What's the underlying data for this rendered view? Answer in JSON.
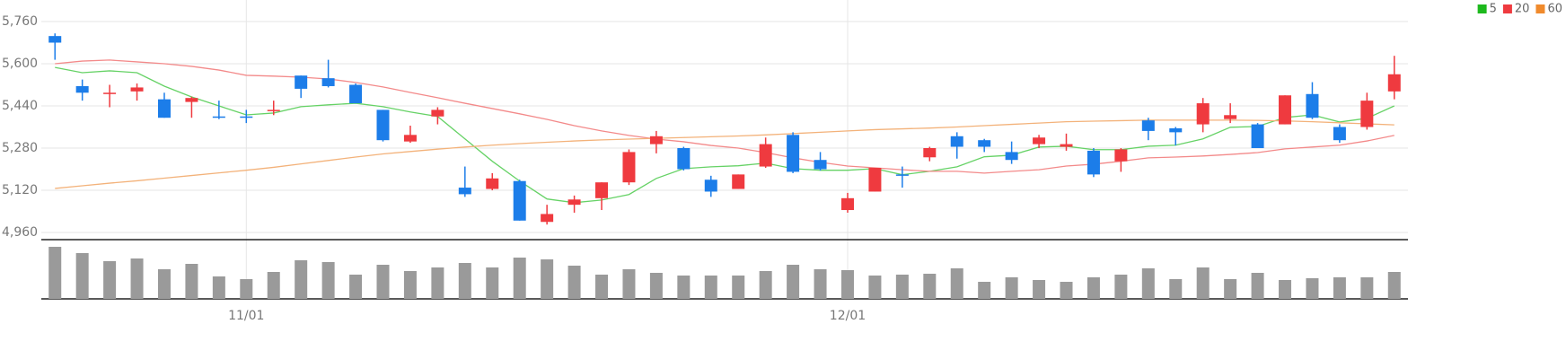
{
  "chart_data": {
    "type": "candlestick",
    "categories": [
      null,
      null,
      null,
      null,
      null,
      null,
      null,
      "11/01",
      null,
      null,
      null,
      null,
      null,
      null,
      null,
      null,
      null,
      null,
      null,
      null,
      null,
      null,
      null,
      null,
      null,
      null,
      null,
      null,
      null,
      "12/01",
      null,
      null,
      null,
      null,
      null,
      null,
      null,
      null,
      null,
      null,
      null,
      null,
      null,
      null,
      null,
      null,
      null,
      null,
      null,
      null
    ],
    "open": [
      5705,
      5515,
      5485,
      5495,
      5465,
      5455,
      5400,
      5400,
      5420,
      5555,
      5545,
      5520,
      5425,
      5305,
      5400,
      5130,
      5125,
      5155,
      5000,
      5065,
      5090,
      5150,
      5295,
      5280,
      5160,
      5125,
      5210,
      5330,
      5235,
      5045,
      5115,
      5180,
      5245,
      5325,
      5310,
      5265,
      5295,
      5285,
      5270,
      5230,
      5385,
      5355,
      5370,
      5390,
      5370,
      5370,
      5485,
      5360,
      5360,
      5495
    ],
    "high": [
      5715,
      5540,
      5520,
      5525,
      5490,
      5475,
      5460,
      5425,
      5460,
      5555,
      5615,
      5525,
      5425,
      5365,
      5435,
      5210,
      5185,
      5160,
      5065,
      5100,
      5150,
      5275,
      5345,
      5285,
      5175,
      5180,
      5320,
      5340,
      5265,
      5110,
      5205,
      5210,
      5285,
      5340,
      5315,
      5305,
      5330,
      5335,
      5280,
      5280,
      5395,
      5360,
      5470,
      5450,
      5375,
      5480,
      5530,
      5370,
      5490,
      5630
    ],
    "low": [
      5615,
      5460,
      5435,
      5460,
      5395,
      5395,
      5390,
      5375,
      5405,
      5470,
      5510,
      5450,
      5305,
      5300,
      5370,
      5095,
      5120,
      5005,
      4990,
      5035,
      5045,
      5140,
      5260,
      5195,
      5095,
      5125,
      5205,
      5185,
      5195,
      5035,
      5115,
      5130,
      5230,
      5240,
      5265,
      5220,
      5280,
      5270,
      5170,
      5190,
      5310,
      5290,
      5340,
      5375,
      5280,
      5370,
      5390,
      5300,
      5350,
      5465
    ],
    "close": [
      5680,
      5490,
      5490,
      5510,
      5395,
      5470,
      5395,
      5395,
      5425,
      5505,
      5515,
      5450,
      5310,
      5330,
      5425,
      5105,
      5165,
      5005,
      5030,
      5085,
      5150,
      5265,
      5325,
      5200,
      5115,
      5180,
      5295,
      5190,
      5200,
      5090,
      5205,
      5175,
      5280,
      5285,
      5285,
      5235,
      5320,
      5295,
      5180,
      5275,
      5345,
      5340,
      5450,
      5405,
      5280,
      5480,
      5395,
      5310,
      5460,
      5560
    ],
    "up_color": "#ef3a3f",
    "down_color": "#1c7de9",
    "ylim": [
      4960,
      5760
    ],
    "yticks": [
      {
        "value": 4960,
        "label": "4,960"
      },
      {
        "value": 5120,
        "label": "5,120"
      },
      {
        "value": 5280,
        "label": "5,280"
      },
      {
        "value": 5440,
        "label": "5,440"
      },
      {
        "value": 5600,
        "label": "5,600"
      },
      {
        "value": 5760,
        "label": "5,760"
      }
    ],
    "grid": true,
    "legend": "top-right",
    "series": [
      {
        "name": "5",
        "color": "#1db91d",
        "line_color": "#66d266",
        "values": [
          5586,
          5566,
          5573,
          5566,
          5515,
          5474,
          5440,
          5406,
          5413,
          5437,
          5444,
          5450,
          5437,
          5417,
          5400,
          5315,
          5230,
          5155,
          5087,
          5073,
          5083,
          5104,
          5165,
          5202,
          5209,
          5213,
          5223,
          5202,
          5196,
          5196,
          5202,
          5179,
          5192,
          5209,
          5247,
          5253,
          5284,
          5287,
          5274,
          5274,
          5287,
          5291,
          5315,
          5359,
          5362,
          5396,
          5406,
          5379,
          5393,
          5440
        ]
      },
      {
        "name": "20",
        "color": "#ef3a3f",
        "line_color": "#f38a8a",
        "values": [
          5600,
          5610,
          5614,
          5607,
          5600,
          5590,
          5576,
          5556,
          5553,
          5549,
          5542,
          5529,
          5512,
          5491,
          5471,
          5450,
          5430,
          5410,
          5389,
          5365,
          5345,
          5328,
          5314,
          5304,
          5290,
          5280,
          5263,
          5243,
          5226,
          5212,
          5205,
          5198,
          5192,
          5192,
          5185,
          5192,
          5198,
          5212,
          5219,
          5230,
          5243,
          5246,
          5250,
          5256,
          5263,
          5277,
          5284,
          5291,
          5307,
          5328
        ]
      },
      {
        "name": "60",
        "color": "#f08a2c",
        "line_color": "#f3b27a",
        "values": [
          5127,
          5137,
          5147,
          5156,
          5166,
          5176,
          5186,
          5196,
          5207,
          5220,
          5233,
          5246,
          5258,
          5267,
          5276,
          5284,
          5291,
          5297,
          5302,
          5307,
          5311,
          5314,
          5317,
          5320,
          5323,
          5326,
          5330,
          5335,
          5340,
          5345,
          5350,
          5353,
          5356,
          5360,
          5365,
          5370,
          5375,
          5380,
          5382,
          5384,
          5386,
          5386,
          5386,
          5386,
          5385,
          5383,
          5380,
          5376,
          5372,
          5368
        ]
      }
    ],
    "volume": {
      "color": "#9a9a9a",
      "ylim": [
        0,
        60
      ],
      "values": [
        58,
        51,
        42,
        45,
        33,
        39,
        25,
        22,
        30,
        43,
        41,
        27,
        38,
        31,
        35,
        40,
        35,
        46,
        44,
        37,
        27,
        33,
        29,
        26,
        26,
        26,
        31,
        38,
        33,
        32,
        26,
        27,
        28,
        34,
        19,
        24,
        21,
        19,
        24,
        27,
        34,
        22,
        35,
        22,
        29,
        21,
        23,
        24,
        24,
        30
      ]
    }
  }
}
